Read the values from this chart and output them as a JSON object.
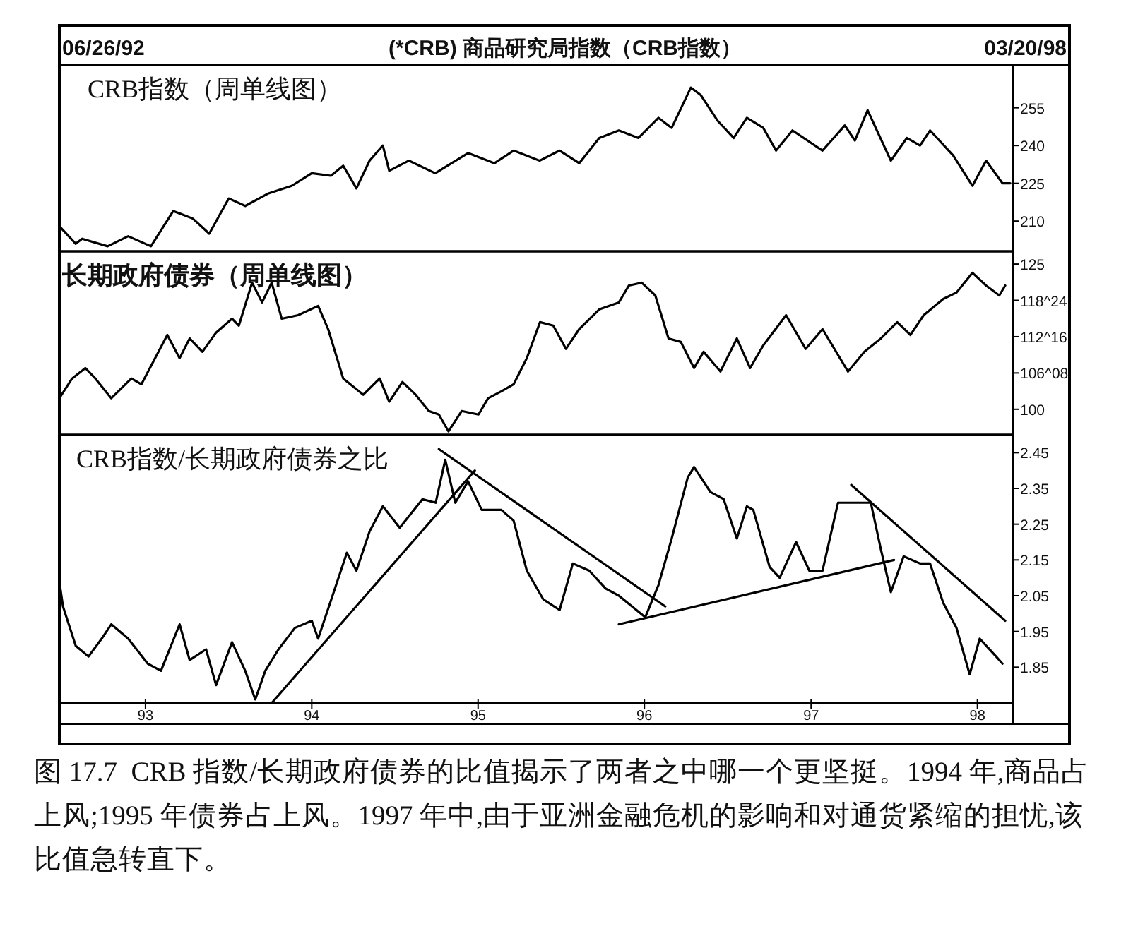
{
  "chart_data": [
    {
      "type": "line",
      "title": "(*CRB) 商品研究局指数（CRB指数）",
      "subtitle": "CRB指数（周单线图）",
      "annotations": [
        "06/26/92",
        "03/20/98"
      ],
      "xlim": [
        "1992-06-26",
        "1998-03-20"
      ],
      "ylim": [
        198,
        272
      ],
      "yticks": [
        210,
        225,
        240,
        255
      ],
      "series": [
        {
          "color": "#000000",
          "x": [
            "1992-06-26",
            "1992-08-01",
            "1992-08-15",
            "1992-10-10",
            "1992-11-24",
            "1993-01-13",
            "1993-03-03",
            "1993-04-15",
            "1993-05-21",
            "1993-07-03",
            "1993-08-08",
            "1993-09-28",
            "1993-11-18",
            "1994-01-01",
            "1994-02-12",
            "1994-03-11",
            "1994-04-09",
            "1994-05-08",
            "1994-06-06",
            "1994-06-20",
            "1994-08-02",
            "1994-09-29",
            "1994-12-10",
            "1995-02-06",
            "1995-03-20",
            "1995-05-16",
            "1995-06-29",
            "1995-08-11",
            "1995-09-24",
            "1995-11-06",
            "1995-12-19",
            "1996-02-01",
            "1996-03-01",
            "1996-04-12",
            "1996-05-04",
            "1996-06-09",
            "1996-07-15",
            "1996-08-13",
            "1996-09-18",
            "1996-10-16",
            "1996-11-21",
            "1997-01-26",
            "1997-03-16",
            "1997-04-07",
            "1997-05-05",
            "1997-06-25",
            "1997-07-30",
            "1997-08-28",
            "1997-09-19",
            "1997-11-09",
            "1997-12-21",
            "1998-01-20",
            "1998-02-25",
            "1998-03-14"
          ],
          "values": [
            208,
            201,
            203,
            200,
            204,
            200,
            214,
            211,
            205,
            219,
            216,
            221,
            224,
            229,
            228,
            232,
            223,
            234,
            240,
            230,
            234,
            229,
            237,
            233,
            238,
            234,
            238,
            233,
            243,
            246,
            243,
            251,
            247,
            263,
            260,
            250,
            243,
            251,
            247,
            238,
            246,
            238,
            248,
            242,
            254,
            234,
            243,
            240,
            246,
            236,
            224,
            234,
            225,
            225
          ]
        }
      ]
    },
    {
      "type": "line",
      "subtitle": "长期政府债券（周单线图）",
      "xlim": [
        "1992-06-26",
        "1998-03-20"
      ],
      "ylim": [
        95.6,
        127.2
      ],
      "yticks": [
        100,
        {
          "value": 106.25,
          "label": "106^08"
        },
        {
          "value": 112.5,
          "label": "112^16"
        },
        {
          "value": 118.75,
          "label": "118^24"
        },
        125
      ],
      "series": [
        {
          "color": "#000000",
          "x": [
            "1992-06-26",
            "1992-07-24",
            "1992-08-22",
            "1992-09-13",
            "1992-10-18",
            "1992-12-01",
            "1992-12-23",
            "1993-02-18",
            "1993-03-17",
            "1993-04-08",
            "1993-05-06",
            "1993-06-05",
            "1993-07-10",
            "1993-07-25",
            "1993-08-23",
            "1993-09-14",
            "1993-10-05",
            "1993-10-27",
            "1993-12-02",
            "1994-01-15",
            "1994-02-06",
            "1994-03-11",
            "1994-04-24",
            "1994-05-30",
            "1994-06-20",
            "1994-07-19",
            "1994-08-17",
            "1994-09-15",
            "1994-10-07",
            "1994-10-28",
            "1994-11-26",
            "1995-01-02",
            "1995-01-23",
            "1995-02-21",
            "1995-03-20",
            "1995-04-18",
            "1995-05-17",
            "1995-06-15",
            "1995-07-13",
            "1995-08-11",
            "1995-09-24",
            "1995-11-06",
            "1995-11-28",
            "1995-12-26",
            "1996-01-25",
            "1996-02-23",
            "1996-03-21",
            "1996-04-19",
            "1996-05-10",
            "1996-06-16",
            "1996-07-22",
            "1996-08-20",
            "1996-09-18",
            "1996-11-07",
            "1996-12-20",
            "1997-01-26",
            "1997-03-23",
            "1997-04-28",
            "1997-06-03",
            "1997-07-09",
            "1997-08-07",
            "1997-09-05",
            "1997-10-18",
            "1997-11-16",
            "1997-12-21",
            "1998-01-20",
            "1998-02-18",
            "1998-03-03"
          ],
          "values": [
            101.9,
            105.3,
            107.1,
            105.3,
            101.9,
            105.3,
            104.3,
            112.8,
            108.8,
            112.2,
            109.9,
            113.2,
            115.6,
            114.4,
            121.8,
            118.4,
            121.8,
            115.6,
            116.2,
            117.8,
            113.8,
            105.3,
            102.5,
            105.3,
            101.3,
            104.7,
            102.5,
            99.7,
            99.1,
            96.2,
            99.7,
            99.1,
            101.9,
            103.1,
            104.3,
            108.8,
            115,
            114.4,
            110.4,
            113.8,
            117.2,
            118.4,
            121.3,
            121.8,
            119.6,
            112.2,
            111.6,
            107.1,
            109.9,
            106.5,
            112.2,
            107.1,
            111,
            116.2,
            110.4,
            113.8,
            106.5,
            109.9,
            112.2,
            115,
            112.8,
            116.2,
            119,
            120.1,
            123.5,
            121.3,
            119.6,
            121.3
          ]
        }
      ]
    },
    {
      "type": "line",
      "subtitle": "CRB指数/长期政府债券之比",
      "annotations": [
        "图 17.7  CRB 指数/长期政府债券的比值揭示了两者之中哪一个更坚挺。1994 年,商品占上风;1995 年债券占上风。1997 年中,由于亚洲金融危机的影响和对通货紧缩的担忧,该比值急转直下。"
      ],
      "xlim": [
        "1992-06-26",
        "1998-03-20"
      ],
      "xticks": [
        {
          "value": "1993-01-01",
          "label": "93"
        },
        {
          "value": "1994-01-01",
          "label": "94"
        },
        {
          "value": "1995-01-01",
          "label": "95"
        },
        {
          "value": "1996-01-01",
          "label": "96"
        },
        {
          "value": "1997-01-01",
          "label": "97"
        },
        {
          "value": "1998-01-01",
          "label": "98"
        }
      ],
      "ylim": [
        1.75,
        2.5
      ],
      "yticks": [
        1.85,
        1.95,
        2.05,
        2.15,
        2.25,
        2.35,
        2.45
      ],
      "series": [
        {
          "color": "#000000",
          "x": [
            "1992-06-26",
            "1992-07-04",
            "1992-08-01",
            "1992-08-29",
            "1992-09-27",
            "1992-10-18",
            "1992-11-24",
            "1993-01-06",
            "1993-02-04",
            "1993-03-17",
            "1993-04-08",
            "1993-05-14",
            "1993-06-05",
            "1993-07-10",
            "1993-08-08",
            "1993-08-30",
            "1993-09-21",
            "1993-10-20",
            "1993-11-25",
            "1994-01-01",
            "1994-01-15",
            "1994-02-13",
            "1994-03-19",
            "1994-04-09",
            "1994-05-08",
            "1994-06-06",
            "1994-07-13",
            "1994-09-01",
            "1994-09-30",
            "1994-10-21",
            "1994-11-12",
            "1994-12-10",
            "1995-01-09",
            "1995-02-21",
            "1995-03-20",
            "1995-04-18",
            "1995-05-24",
            "1995-06-29",
            "1995-07-28",
            "1995-09-02",
            "1995-10-08",
            "1995-11-06",
            "1995-12-05",
            "1996-01-03",
            "1996-02-01",
            "1996-03-01",
            "1996-04-05",
            "1996-04-19",
            "1996-05-25",
            "1996-06-23",
            "1996-07-22",
            "1996-08-13",
            "1996-08-27",
            "1996-10-02",
            "1996-10-24",
            "1996-11-29",
            "1996-12-28",
            "1997-01-26",
            "1997-03-01",
            "1997-04-07",
            "1997-05-12",
            "1997-06-03",
            "1997-06-25",
            "1997-07-23",
            "1997-08-28",
            "1997-09-19",
            "1997-10-18",
            "1997-11-16",
            "1997-12-15",
            "1998-01-06",
            "1998-02-11",
            "1998-02-25"
          ],
          "values": [
            2.09,
            2.02,
            1.91,
            1.88,
            1.93,
            1.97,
            1.93,
            1.86,
            1.84,
            1.97,
            1.87,
            1.9,
            1.8,
            1.92,
            1.84,
            1.76,
            1.84,
            1.9,
            1.96,
            1.98,
            1.93,
            2.04,
            2.17,
            2.12,
            2.23,
            2.3,
            2.24,
            2.32,
            2.31,
            2.43,
            2.31,
            2.37,
            2.29,
            2.29,
            2.26,
            2.12,
            2.04,
            2.01,
            2.14,
            2.12,
            2.07,
            2.05,
            2.02,
            1.99,
            2.08,
            2.21,
            2.38,
            2.41,
            2.34,
            2.32,
            2.21,
            2.3,
            2.29,
            2.13,
            2.1,
            2.2,
            2.12,
            2.12,
            2.31,
            2.31,
            2.31,
            2.18,
            2.06,
            2.16,
            2.14,
            2.14,
            2.03,
            1.96,
            1.83,
            1.93,
            1.88,
            1.86
          ]
        },
        {
          "type": "line",
          "color": "#000000",
          "x": [
            "1993-10-05",
            "1994-12-25"
          ],
          "values": [
            1.75,
            2.4
          ]
        },
        {
          "type": "line",
          "color": "#000000",
          "x": [
            "1994-10-07",
            "1996-02-16"
          ],
          "values": [
            2.46,
            2.02
          ]
        },
        {
          "type": "line",
          "color": "#000000",
          "x": [
            "1995-11-06",
            "1997-07-02"
          ],
          "values": [
            1.97,
            2.15
          ]
        },
        {
          "type": "line",
          "color": "#000000",
          "x": [
            "1997-03-30",
            "1998-03-03"
          ],
          "values": [
            2.36,
            1.98
          ]
        }
      ]
    }
  ]
}
